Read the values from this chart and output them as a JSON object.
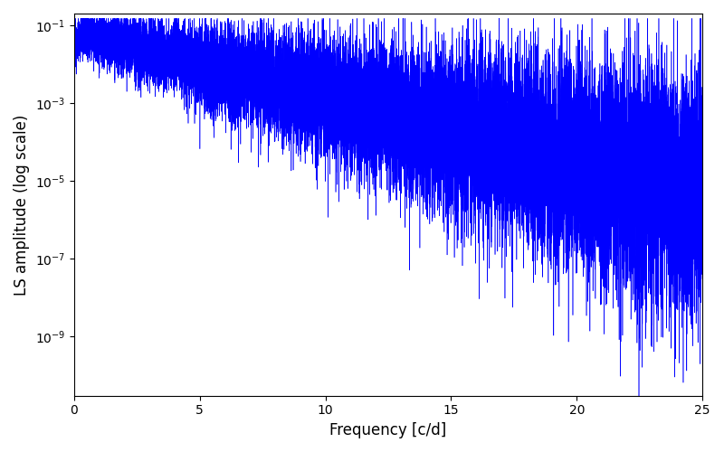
{
  "xlabel": "Frequency [c/d]",
  "ylabel": "LS amplitude (log scale)",
  "xlim": [
    0,
    25
  ],
  "ylim_log": [
    3e-11,
    0.2
  ],
  "line_color": "#0000ff",
  "line_width": 0.4,
  "figsize": [
    8.0,
    5.0
  ],
  "dpi": 100,
  "background_color": "#ffffff",
  "yticks": [
    1e-09,
    1e-07,
    1e-05,
    0.001,
    0.1
  ],
  "xticks": [
    0,
    5,
    10,
    15,
    20,
    25
  ],
  "seed": 12345,
  "n_points": 8000,
  "freq_max": 25.0
}
